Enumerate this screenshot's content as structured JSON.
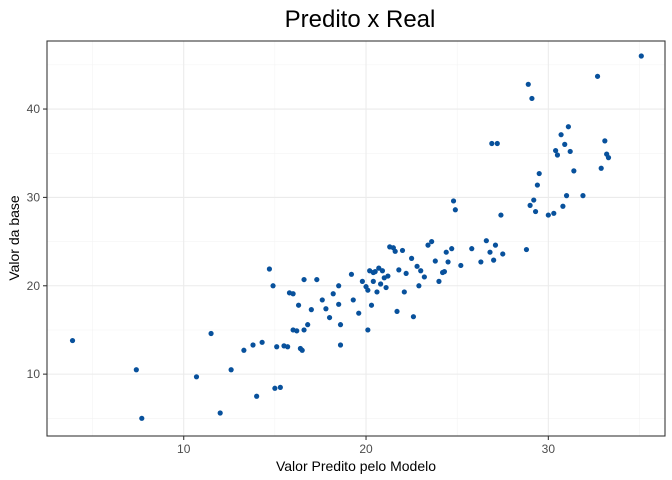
{
  "chart_data": {
    "type": "scatter",
    "title": "Predito x Real",
    "xlabel": "Valor Predito pelo Modelo",
    "ylabel": "Valor da base",
    "xlim": [
      2.5,
      36.4
    ],
    "ylim": [
      3.0,
      47.7
    ],
    "xticks": [
      10,
      20,
      30
    ],
    "yticks": [
      10,
      20,
      30,
      40
    ],
    "xminor": [
      5,
      15,
      25,
      35
    ],
    "yminor": [
      5,
      15,
      25,
      35,
      45
    ],
    "grid": true,
    "point_color": "#08519c",
    "series": [
      {
        "x": [
          3.9,
          7.4,
          7.7,
          10.7,
          11.5,
          12.0,
          12.6,
          13.3,
          13.8,
          14.0,
          14.3,
          14.7,
          14.9,
          15.0,
          15.1,
          15.3,
          15.5,
          15.7,
          15.8,
          16.0,
          16.0,
          16.2,
          16.3,
          16.4,
          16.5,
          16.6,
          16.6,
          16.8,
          17.0,
          17.3,
          17.6,
          17.8,
          18.0,
          18.2,
          18.5,
          18.6,
          18.6,
          18.5,
          19.2,
          19.3,
          19.6,
          19.8,
          20.0,
          20.1,
          20.1,
          20.2,
          20.3,
          20.4,
          20.4,
          20.5,
          20.6,
          20.7,
          20.8,
          20.9,
          21.0,
          21.1,
          21.2,
          21.3,
          21.5,
          21.6,
          21.7,
          21.8,
          22.0,
          22.1,
          22.2,
          22.5,
          22.6,
          22.8,
          22.9,
          23.0,
          23.2,
          23.4,
          23.6,
          23.8,
          24.0,
          24.2,
          24.3,
          24.4,
          24.5,
          24.7,
          24.8,
          24.9,
          25.2,
          25.8,
          26.3,
          26.6,
          26.8,
          26.9,
          27.0,
          27.1,
          27.2,
          27.4,
          27.5,
          28.8,
          28.9,
          29.0,
          29.1,
          29.2,
          29.3,
          29.4,
          29.5,
          30.0,
          30.3,
          30.4,
          30.5,
          30.7,
          30.8,
          30.9,
          31.0,
          31.1,
          31.2,
          31.4,
          31.9,
          32.7,
          32.9,
          33.1,
          33.2,
          33.3,
          35.1
        ],
        "y": [
          13.8,
          10.5,
          5.0,
          9.7,
          14.6,
          5.6,
          10.5,
          12.7,
          13.3,
          7.5,
          13.6,
          21.9,
          20.0,
          8.4,
          13.1,
          8.5,
          13.2,
          13.1,
          19.2,
          15.0,
          19.1,
          14.9,
          17.8,
          12.9,
          12.7,
          20.7,
          15.0,
          15.6,
          17.3,
          20.7,
          18.4,
          17.4,
          16.4,
          19.1,
          17.9,
          13.3,
          15.6,
          20.0,
          21.3,
          18.4,
          16.9,
          20.5,
          19.9,
          15.0,
          19.5,
          21.7,
          17.8,
          21.5,
          20.5,
          21.6,
          19.3,
          22.0,
          20.2,
          21.7,
          20.9,
          19.8,
          21.1,
          24.4,
          24.3,
          23.9,
          17.1,
          21.8,
          24.0,
          19.3,
          21.4,
          23.1,
          16.5,
          22.2,
          20.0,
          21.7,
          21.0,
          24.6,
          25.0,
          22.8,
          20.5,
          21.5,
          21.6,
          23.8,
          22.7,
          24.2,
          29.6,
          28.6,
          22.3,
          24.2,
          22.7,
          25.1,
          23.8,
          36.1,
          22.9,
          24.6,
          36.1,
          28.0,
          23.6,
          24.1,
          42.8,
          29.1,
          41.2,
          29.7,
          28.4,
          31.4,
          32.7,
          28.0,
          28.2,
          35.3,
          34.8,
          37.1,
          29.0,
          36.0,
          30.2,
          38.0,
          35.2,
          33.0,
          30.2,
          43.7,
          33.3,
          36.4,
          34.9,
          34.5,
          46.0
        ]
      }
    ]
  }
}
